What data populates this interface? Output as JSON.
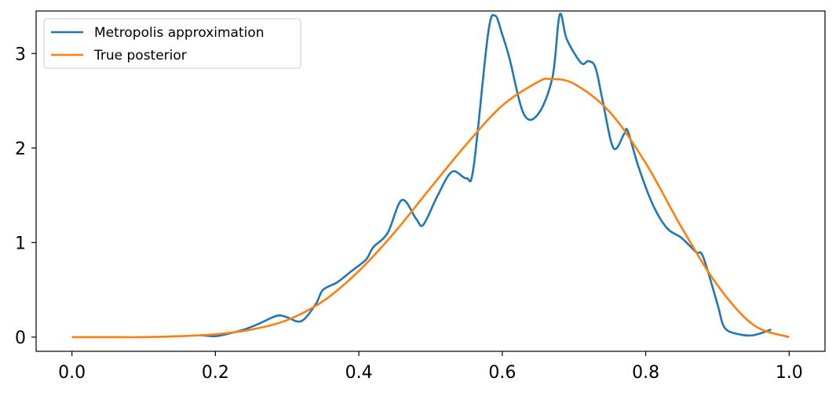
{
  "chart_data": {
    "type": "line",
    "xlim": [
      -0.05,
      1.05
    ],
    "ylim": [
      -0.15,
      3.45
    ],
    "xticks": [
      0.0,
      0.2,
      0.4,
      0.6,
      0.8,
      1.0
    ],
    "xtick_labels": [
      "0.0",
      "0.2",
      "0.4",
      "0.6",
      "0.8",
      "1.0"
    ],
    "yticks": [
      0,
      1,
      2,
      3
    ],
    "ytick_labels": [
      "0",
      "1",
      "2",
      "3"
    ],
    "grid": false,
    "legend_position": "top-left",
    "series": [
      {
        "name": "Metropolis approximation",
        "color": "#1f77b4",
        "x": [
          0.18,
          0.2,
          0.22,
          0.24,
          0.26,
          0.28,
          0.29,
          0.3,
          0.32,
          0.34,
          0.35,
          0.37,
          0.39,
          0.41,
          0.42,
          0.44,
          0.46,
          0.48,
          0.49,
          0.51,
          0.53,
          0.55,
          0.56,
          0.58,
          0.59,
          0.6,
          0.61,
          0.63,
          0.65,
          0.67,
          0.68,
          0.69,
          0.71,
          0.72,
          0.73,
          0.74,
          0.755,
          0.77,
          0.775,
          0.79,
          0.81,
          0.83,
          0.85,
          0.87,
          0.88,
          0.9,
          0.91,
          0.93,
          0.95,
          0.975
        ],
        "y": [
          0.02,
          0.01,
          0.04,
          0.08,
          0.14,
          0.21,
          0.23,
          0.21,
          0.17,
          0.35,
          0.5,
          0.58,
          0.7,
          0.82,
          0.95,
          1.1,
          1.45,
          1.25,
          1.19,
          1.5,
          1.75,
          1.68,
          1.8,
          3.2,
          3.4,
          3.2,
          2.95,
          2.36,
          2.36,
          2.75,
          3.41,
          3.15,
          2.9,
          2.92,
          2.85,
          2.5,
          2.0,
          2.15,
          2.18,
          1.8,
          1.4,
          1.15,
          1.05,
          0.9,
          0.85,
          0.35,
          0.1,
          0.03,
          0.02,
          0.08
        ]
      },
      {
        "name": "True posterior",
        "color": "#ff7f0e",
        "x": [
          0.0,
          0.05,
          0.1,
          0.15,
          0.2,
          0.25,
          0.3,
          0.35,
          0.4,
          0.45,
          0.5,
          0.55,
          0.6,
          0.65,
          0.667,
          0.7,
          0.75,
          0.8,
          0.85,
          0.9,
          0.95,
          1.0
        ],
        "y": [
          0.0,
          0.0,
          0.0,
          0.01,
          0.03,
          0.08,
          0.18,
          0.38,
          0.7,
          1.11,
          1.58,
          2.04,
          2.45,
          2.7,
          2.73,
          2.68,
          2.38,
          1.84,
          1.16,
          0.55,
          0.13,
          0.0
        ]
      }
    ]
  }
}
